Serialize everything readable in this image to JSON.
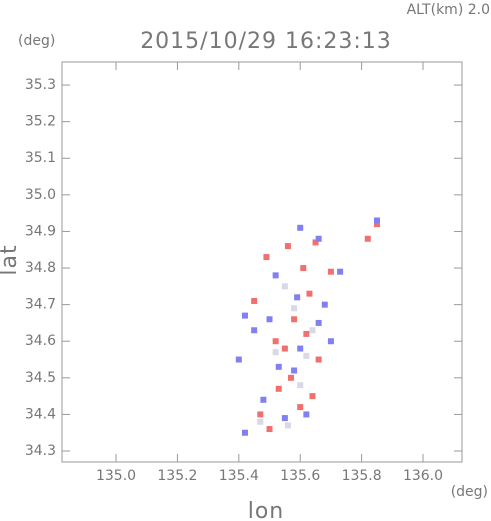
{
  "chart_data": {
    "type": "scatter",
    "title": "2015/10/29 16:23:13",
    "subtitle": "ALT(km) 2.0",
    "y_unit": "(deg)",
    "x_unit": "(deg)",
    "xlabel": "lon",
    "ylabel": "lat",
    "xlim": [
      134.824,
      136.127
    ],
    "ylim": [
      34.27,
      35.363
    ],
    "xticks": [
      {
        "value": 135.0,
        "label": "135.0"
      },
      135.2,
      135.4,
      135.6,
      135.8,
      {
        "value": 136.0,
        "label": "136.0"
      }
    ],
    "yticks": [
      34.3,
      34.4,
      34.5,
      34.6,
      34.7,
      34.8,
      34.9,
      {
        "value": 35.0,
        "label": "35.0"
      },
      35.1,
      35.2,
      35.3
    ],
    "series": [
      {
        "color": "#f07070",
        "x": [
          135.5,
          135.47,
          135.6,
          135.53,
          135.55,
          135.62,
          135.58,
          135.52,
          135.66,
          135.57,
          135.63,
          135.49,
          135.56,
          135.82,
          135.65,
          135.61,
          135.7,
          135.85,
          135.45,
          135.64
        ],
        "values": [
          34.36,
          34.4,
          34.42,
          34.47,
          34.58,
          34.62,
          34.66,
          34.6,
          34.55,
          34.5,
          34.73,
          34.83,
          34.86,
          34.88,
          34.87,
          34.8,
          34.79,
          34.92,
          34.71,
          34.45
        ]
      },
      {
        "color": "#8080f0",
        "x": [
          135.42,
          135.55,
          135.62,
          135.48,
          135.58,
          135.45,
          135.6,
          135.5,
          135.42,
          135.66,
          135.59,
          135.68,
          135.73,
          135.66,
          135.52,
          135.6,
          135.85,
          135.4,
          135.7,
          135.53
        ],
        "values": [
          34.35,
          34.39,
          34.4,
          34.44,
          34.52,
          34.63,
          34.58,
          34.66,
          34.67,
          34.65,
          34.72,
          34.7,
          34.79,
          34.88,
          34.78,
          34.91,
          34.93,
          34.55,
          34.6,
          34.53
        ]
      },
      {
        "color": "#d8d8e8",
        "x": [
          135.56,
          135.6,
          135.52,
          135.64,
          135.58,
          135.47,
          135.62,
          135.55
        ],
        "values": [
          34.37,
          34.48,
          34.57,
          34.63,
          34.69,
          34.38,
          34.56,
          34.75
        ]
      }
    ]
  }
}
